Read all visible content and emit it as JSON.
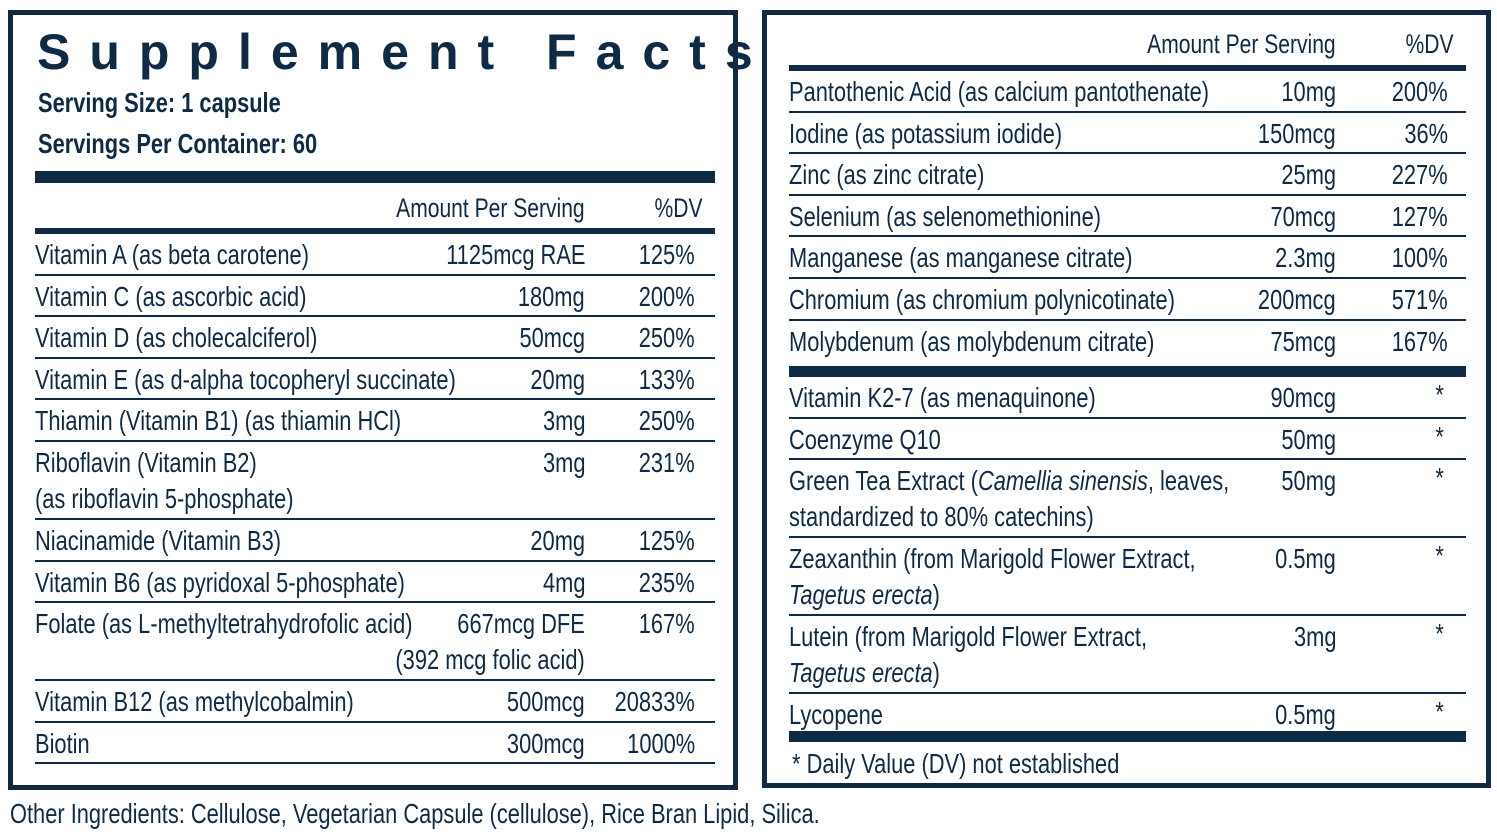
{
  "title": "Supplement Facts",
  "serving_size": "Serving Size: 1 capsule",
  "servings_per_container": "Servings Per Container: 60",
  "colors": {
    "ink": "#0f2a44",
    "background": "#ffffff"
  },
  "column_headers": {
    "amount": "Amount Per Serving",
    "dv": "%DV"
  },
  "left_rows": [
    {
      "name": "Vitamin A (as beta carotene)",
      "amount": "1125mcg RAE",
      "dv": "125%"
    },
    {
      "name": "Vitamin C (as ascorbic acid)",
      "amount": "180mg",
      "dv": "200%"
    },
    {
      "name": "Vitamin D (as cholecalciferol)",
      "amount": "50mcg",
      "dv": "250%"
    },
    {
      "name": "Vitamin E (as d-alpha tocopheryl succinate)",
      "amount": "20mg",
      "dv": "133%"
    },
    {
      "name": "Thiamin (Vitamin B1) (as thiamin HCl)",
      "amount": "3mg",
      "dv": "250%"
    },
    {
      "name": "Riboflavin (Vitamin B2)",
      "name_line2": "(as riboflavin 5-phosphate)",
      "amount": "3mg",
      "dv": "231%"
    },
    {
      "name": "Niacinamide (Vitamin B3)",
      "amount": "20mg",
      "dv": "125%"
    },
    {
      "name": "Vitamin B6 (as pyridoxal 5-phosphate)",
      "amount": "4mg",
      "dv": "235%"
    },
    {
      "name": "Folate (as L-methyltetrahydrofolic acid)",
      "amount": "667mcg DFE",
      "amount_line2": "(392 mcg folic acid)",
      "dv": "167%"
    },
    {
      "name": "Vitamin B12 (as methylcobalmin)",
      "amount": "500mcg",
      "dv": "20833%"
    },
    {
      "name": "Biotin",
      "amount": "300mcg",
      "dv": "1000%"
    }
  ],
  "right_rows_top": [
    {
      "name": "Pantothenic Acid (as calcium pantothenate)",
      "amount": "10mg",
      "dv": "200%"
    },
    {
      "name": "Iodine (as potassium iodide)",
      "amount": "150mcg",
      "dv": "36%"
    },
    {
      "name": "Zinc (as zinc citrate)",
      "amount": "25mg",
      "dv": "227%"
    },
    {
      "name": "Selenium (as selenomethionine)",
      "amount": "70mcg",
      "dv": "127%"
    },
    {
      "name": "Manganese (as manganese citrate)",
      "amount": "2.3mg",
      "dv": "100%"
    },
    {
      "name": "Chromium (as chromium polynicotinate)",
      "amount": "200mcg",
      "dv": "571%"
    },
    {
      "name": "Molybdenum (as molybdenum citrate)",
      "amount": "75mcg",
      "dv": "167%"
    }
  ],
  "right_rows_bottom": [
    {
      "name": "Vitamin K2-7 (as menaquinone)",
      "amount": "90mcg",
      "dv": "*"
    },
    {
      "name": "Coenzyme Q10",
      "amount": "50mg",
      "dv": "*"
    },
    {
      "name_pre": "Green Tea Extract (",
      "name_italic": "Camellia sinensis",
      "name_post": ", leaves,",
      "name_line2": "standardized to 80% catechins)",
      "amount": "50mg",
      "dv": "*"
    },
    {
      "name": "Zeaxanthin (from Marigold Flower Extract,",
      "name_line2_italic": "Tagetus erecta",
      "name_line2_post": ")",
      "amount": "0.5mg",
      "dv": "*"
    },
    {
      "name": "Lutein (from Marigold Flower Extract,",
      "name_line2_italic": "Tagetus erecta",
      "name_line2_post": ")",
      "amount": "3mg",
      "dv": "*"
    },
    {
      "name": "Lycopene",
      "amount": "0.5mg",
      "dv": "*"
    }
  ],
  "footnote": "* Daily Value (DV) not established",
  "other_ingredients": "Other Ingredients: Cellulose, Vegetarian Capsule (cellulose), Rice Bran Lipid, Silica."
}
